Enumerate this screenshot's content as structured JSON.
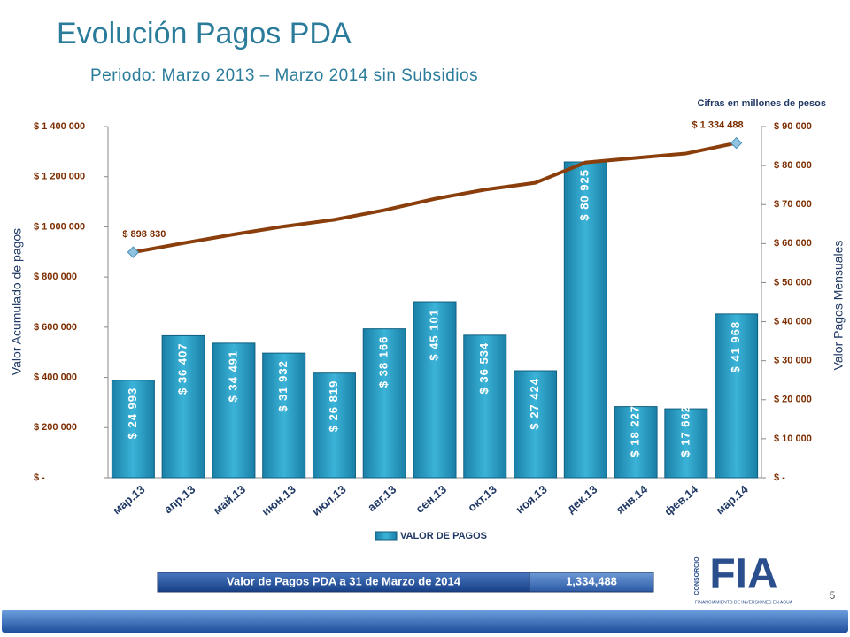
{
  "chart_data": {
    "type": "bar_line",
    "title": "Evolución Pagos PDA",
    "subtitle": "Periodo: Marzo 2013 – Marzo 2014 sin Subsidios",
    "note": "Cifras en millones de pesos",
    "ylabel": "Valor Acumulado de pagos",
    "y2label": "Valor Pagos Mensuales",
    "categories": [
      "мар.13",
      "апр.13",
      "май.13",
      "июн.13",
      "июл.13",
      "авг.13",
      "сен.13",
      "окт.13",
      "ноя.13",
      "дек.13",
      "янв.14",
      "фев.14",
      "мар.14"
    ],
    "series": [
      {
        "name": "VALOR DE PAGOS",
        "type": "bar",
        "axis": "y2",
        "color": "#2a9fc4",
        "values": [
          24993,
          36407,
          34491,
          31932,
          26819,
          38166,
          45101,
          36534,
          27424,
          80925,
          18227,
          17662,
          41968
        ],
        "value_labels": [
          "$ 24 993",
          "$ 36 407",
          "$ 34 491",
          "$ 31 932",
          "$ 26 819",
          "$ 38 166",
          "$ 45 101",
          "$ 36 534",
          "$ 27 424",
          "$ 80 925",
          "$ 18 227",
          "$ 17 662",
          "$ 41 968"
        ]
      },
      {
        "type": "line",
        "axis": "y",
        "color": "#8a3e0b",
        "values": [
          898830,
          935237,
          969728,
          1001660,
          1028479,
          1066645,
          1111746,
          1148280,
          1175704,
          1256629,
          1274856,
          1292518,
          1334488
        ],
        "value_labels": [
          "$ 898 830",
          null,
          null,
          null,
          null,
          null,
          null,
          null,
          null,
          null,
          null,
          null,
          "$ 1 334 488"
        ]
      }
    ],
    "ylim": [
      0,
      1400000
    ],
    "yticks": [
      {
        "value": 0,
        "label": "$ -"
      },
      {
        "value": 200000,
        "label": "$ 200 000"
      },
      {
        "value": 400000,
        "label": "$ 400 000"
      },
      {
        "value": 600000,
        "label": "$ 600 000"
      },
      {
        "value": 800000,
        "label": "$ 800 000"
      },
      {
        "value": 1000000,
        "label": "$ 1 000 000"
      },
      {
        "value": 1200000,
        "label": "$ 1 200 000"
      },
      {
        "value": 1400000,
        "label": "$ 1 400 000"
      }
    ],
    "y2lim": [
      0,
      90000
    ],
    "y2ticks": [
      {
        "value": 0,
        "label": "$ -"
      },
      {
        "value": 10000,
        "label": "$ 10 000"
      },
      {
        "value": 20000,
        "label": "$ 20 000"
      },
      {
        "value": 30000,
        "label": "$ 30 000"
      },
      {
        "value": 40000,
        "label": "$ 40 000"
      },
      {
        "value": 50000,
        "label": "$ 50 000"
      },
      {
        "value": 60000,
        "label": "$ 60 000"
      },
      {
        "value": 70000,
        "label": "$ 70 000"
      },
      {
        "value": 80000,
        "label": "$ 80 000"
      },
      {
        "value": 90000,
        "label": "$ 90 000"
      }
    ],
    "legend": "bottom"
  },
  "summary": {
    "label": "Valor de Pagos PDA a 31 de Marzo de 2014",
    "value": "1,334,488"
  },
  "logo": {
    "prefix": "CONSORCIO",
    "name": "FIA",
    "tagline": "FINANCIAMIENTO DE INVERSIONES EN AGUA"
  },
  "page_number": "5"
}
